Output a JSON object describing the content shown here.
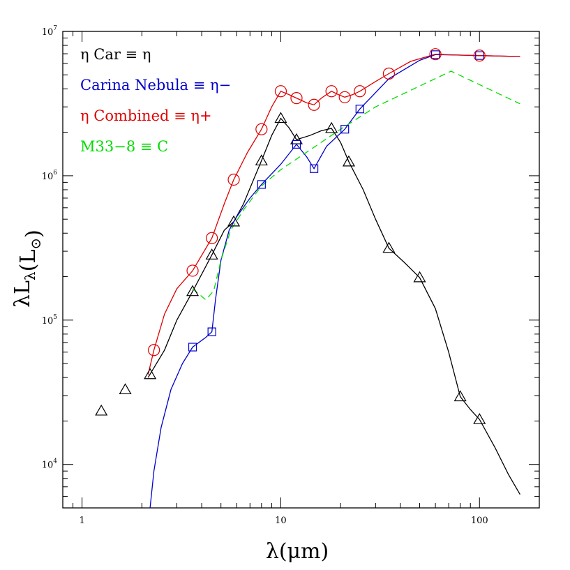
{
  "chart_data": {
    "type": "line",
    "title": "",
    "xlabel": "λ(μm)",
    "ylabel": "λL_λ(L_⊙)",
    "xscale": "log",
    "yscale": "log",
    "xlim": [
      0.8,
      200
    ],
    "ylim": [
      5000,
      10000000
    ],
    "grid": false,
    "legend_position": "top-left",
    "x_ticks": [
      {
        "value": 1,
        "label": "1"
      },
      {
        "value": 10,
        "label": "10"
      },
      {
        "value": 100,
        "label": "100"
      }
    ],
    "y_ticks": [
      {
        "value": 10000,
        "base": "10",
        "exp": "4"
      },
      {
        "value": 100000,
        "base": "10",
        "exp": "5"
      },
      {
        "value": 1000000,
        "base": "10",
        "exp": "6"
      },
      {
        "value": 10000000,
        "base": "10",
        "exp": "7"
      }
    ],
    "series": [
      {
        "name": "η Car ≡ η",
        "color": "#000000",
        "marker": "triangle",
        "points": [
          [
            1.25,
            23500
          ],
          [
            1.65,
            33000
          ],
          [
            2.2,
            42000
          ],
          [
            3.6,
            158000
          ],
          [
            4.5,
            283000
          ],
          [
            5.8,
            480000
          ],
          [
            8.0,
            1270000
          ],
          [
            10.0,
            2500000
          ],
          [
            12.0,
            1780000
          ],
          [
            18.0,
            2130000
          ],
          [
            22.0,
            1250000
          ],
          [
            35.0,
            315000
          ],
          [
            50.0,
            197000
          ],
          [
            80.0,
            29500
          ],
          [
            100.0,
            20500
          ]
        ],
        "line": [
          [
            2.15,
            40000
          ],
          [
            2.6,
            62000
          ],
          [
            3.0,
            100000
          ],
          [
            3.6,
            158000
          ],
          [
            4.5,
            283000
          ],
          [
            5.2,
            420000
          ],
          [
            5.8,
            480000
          ],
          [
            6.5,
            640000
          ],
          [
            7.2,
            900000
          ],
          [
            8.0,
            1270000
          ],
          [
            9.0,
            1900000
          ],
          [
            10.0,
            2500000
          ],
          [
            11.0,
            2150000
          ],
          [
            12.0,
            1780000
          ],
          [
            14.0,
            1900000
          ],
          [
            16.0,
            2050000
          ],
          [
            18.0,
            2130000
          ],
          [
            20.0,
            1700000
          ],
          [
            22.0,
            1250000
          ],
          [
            26.0,
            800000
          ],
          [
            30.0,
            500000
          ],
          [
            35.0,
            315000
          ],
          [
            42.0,
            250000
          ],
          [
            50.0,
            197000
          ],
          [
            60.0,
            120000
          ],
          [
            70.0,
            60000
          ],
          [
            80.0,
            29500
          ],
          [
            90.0,
            24000
          ],
          [
            100.0,
            20500
          ],
          [
            120.0,
            13000
          ],
          [
            140.0,
            8500
          ],
          [
            160.0,
            6200
          ]
        ]
      },
      {
        "name": "Carina Nebula ≡ η−",
        "color": "#0000cc",
        "marker": "square",
        "points": [
          [
            3.6,
            65000
          ],
          [
            4.5,
            83000
          ],
          [
            8.0,
            870000
          ],
          [
            12.0,
            1650000
          ],
          [
            14.7,
            1120000
          ],
          [
            21.0,
            2100000
          ],
          [
            25.0,
            2900000
          ],
          [
            60.0,
            6900000
          ],
          [
            100.0,
            6800000
          ]
        ],
        "line": [
          [
            2.2,
            5000
          ],
          [
            2.3,
            9000
          ],
          [
            2.5,
            18000
          ],
          [
            2.8,
            33000
          ],
          [
            3.2,
            50000
          ],
          [
            3.6,
            65000
          ],
          [
            4.2,
            76000
          ],
          [
            4.5,
            83000
          ],
          [
            4.7,
            140000
          ],
          [
            5.0,
            260000
          ],
          [
            5.5,
            420000
          ],
          [
            6.0,
            520000
          ],
          [
            7.0,
            700000
          ],
          [
            8.0,
            870000
          ],
          [
            10.0,
            1200000
          ],
          [
            12.0,
            1650000
          ],
          [
            13.5,
            1350000
          ],
          [
            14.7,
            1120000
          ],
          [
            17.0,
            1600000
          ],
          [
            21.0,
            2100000
          ],
          [
            25.0,
            2900000
          ],
          [
            35.0,
            4700000
          ],
          [
            50.0,
            6300000
          ],
          [
            60.0,
            6900000
          ],
          [
            80.0,
            6850000
          ],
          [
            100.0,
            6800000
          ],
          [
            160.0,
            6700000
          ]
        ]
      },
      {
        "name": "η Combined ≡ η+",
        "color": "#e00000",
        "marker": "circle",
        "points": [
          [
            2.3,
            62000
          ],
          [
            3.6,
            220000
          ],
          [
            4.5,
            370000
          ],
          [
            5.8,
            940000
          ],
          [
            8.0,
            2100000
          ],
          [
            10.0,
            3850000
          ],
          [
            12.0,
            3450000
          ],
          [
            14.7,
            3100000
          ],
          [
            18.0,
            3850000
          ],
          [
            21.0,
            3500000
          ],
          [
            25.0,
            3850000
          ],
          [
            35.0,
            5100000
          ],
          [
            60.0,
            6950000
          ],
          [
            100.0,
            6800000
          ]
        ],
        "line": [
          [
            2.15,
            42000
          ],
          [
            2.3,
            62000
          ],
          [
            2.6,
            110000
          ],
          [
            3.0,
            165000
          ],
          [
            3.6,
            220000
          ],
          [
            4.5,
            370000
          ],
          [
            5.2,
            640000
          ],
          [
            5.8,
            940000
          ],
          [
            6.8,
            1450000
          ],
          [
            8.0,
            2100000
          ],
          [
            9.0,
            3000000
          ],
          [
            10.0,
            3850000
          ],
          [
            11.0,
            3650000
          ],
          [
            12.0,
            3450000
          ],
          [
            13.5,
            3200000
          ],
          [
            14.7,
            3100000
          ],
          [
            16.0,
            3450000
          ],
          [
            18.0,
            3850000
          ],
          [
            19.5,
            3650000
          ],
          [
            21.0,
            3500000
          ],
          [
            23.0,
            3650000
          ],
          [
            25.0,
            3850000
          ],
          [
            30.0,
            4500000
          ],
          [
            35.0,
            5100000
          ],
          [
            45.0,
            6200000
          ],
          [
            60.0,
            6950000
          ],
          [
            80.0,
            6850000
          ],
          [
            100.0,
            6800000
          ],
          [
            160.0,
            6700000
          ]
        ]
      },
      {
        "name": "M33−8 ≡ C",
        "color": "#00dd00",
        "marker": "none",
        "dashed": true,
        "points": [],
        "line": [
          [
            3.6,
            165000
          ],
          [
            4.2,
            138000
          ],
          [
            4.6,
            160000
          ],
          [
            5.0,
            260000
          ],
          [
            5.6,
            420000
          ],
          [
            6.5,
            580000
          ],
          [
            8.0,
            850000
          ],
          [
            10.0,
            1100000
          ],
          [
            20.0,
            2100000
          ],
          [
            30.0,
            3000000
          ],
          [
            72.0,
            5300000
          ],
          [
            160.0,
            3150000
          ]
        ]
      }
    ]
  }
}
